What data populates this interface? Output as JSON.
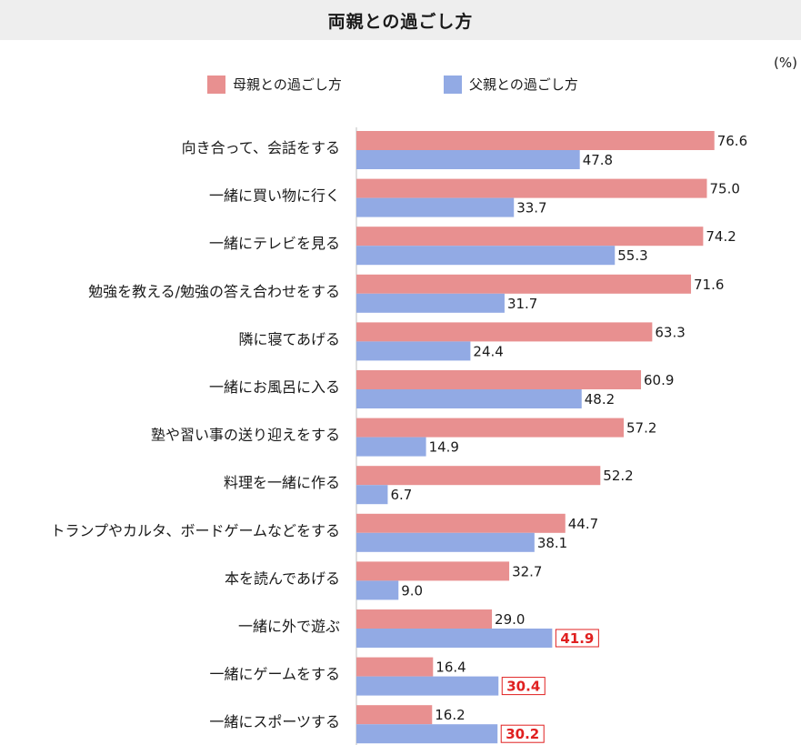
{
  "colors": {
    "mother": "#E89090",
    "father": "#92AAE4",
    "highlight": "#E02020"
  },
  "title": "両親との過ごし方",
  "unit": "(%)",
  "chart_data": {
    "type": "bar",
    "orientation": "horizontal",
    "categories": [
      "向き合って、会話をする",
      "一緒に買い物に行く",
      "一緒にテレビを見る",
      "勉強を教える/勉強の答え合わせをする",
      "隣に寝てあげる",
      "一緒にお風呂に入る",
      "塾や習い事の送り迎えをする",
      "料理を一緒に作る",
      "トランプやカルタ、ボードゲームなどをする",
      "本を読んであげる",
      "一緒に外で遊ぶ",
      "一緒にゲームをする",
      "一緒にスポーツする"
    ],
    "series": [
      {
        "name": "母親との過ごし方",
        "values": [
          76.6,
          75.0,
          74.2,
          71.6,
          63.3,
          60.9,
          57.2,
          52.2,
          44.7,
          32.7,
          29.0,
          16.4,
          16.2
        ]
      },
      {
        "name": "父親との過ごし方",
        "values": [
          47.8,
          33.7,
          55.3,
          31.7,
          24.4,
          48.2,
          14.9,
          6.7,
          38.1,
          9.0,
          41.9,
          30.4,
          30.2
        ]
      }
    ],
    "highlighted": [
      {
        "series": 1,
        "index": 10
      },
      {
        "series": 1,
        "index": 11
      },
      {
        "series": 1,
        "index": 12
      }
    ],
    "legend_position": "top",
    "grid": false,
    "xlim": [
      0,
      100
    ]
  }
}
